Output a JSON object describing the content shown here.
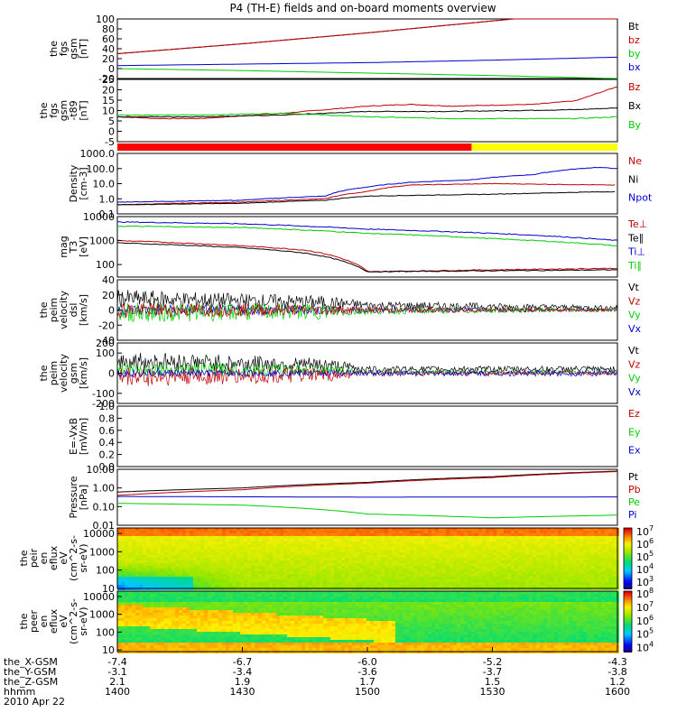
{
  "title": "P4 (TH-E) fields and on-board moments overview",
  "colors": {
    "black": "#000000",
    "red": "#c00000",
    "green": "#00cc00",
    "blue": "#0000cc",
    "bar_red": "#ff0000",
    "bar_yellow": "#ffff00"
  },
  "chart_data": [
    {
      "type": "line",
      "panel": "fgs",
      "ylabel_lines": [
        "the",
        "fgs",
        "gsm",
        "[nT]"
      ],
      "ylim": [
        -20,
        100
      ],
      "ytick_labels": [
        "100",
        "80",
        "60",
        "40",
        "20",
        "0",
        "-20"
      ],
      "legend": [
        {
          "label": "Bt",
          "color": "black"
        },
        {
          "label": "bz",
          "color": "red"
        },
        {
          "label": "by",
          "color": "green"
        },
        {
          "label": "bx",
          "color": "blue"
        }
      ],
      "series": [
        {
          "name": "Bt",
          "color": "black",
          "x": [
            1400,
            1430,
            1500,
            1530,
            1600
          ],
          "y": [
            30,
            50,
            72,
            96,
            120
          ]
        },
        {
          "name": "bz",
          "color": "red",
          "x": [
            1400,
            1430,
            1500,
            1530,
            1600
          ],
          "y": [
            30,
            50,
            72,
            96,
            120
          ]
        },
        {
          "name": "bx",
          "color": "blue",
          "x": [
            1400,
            1430,
            1500,
            1530,
            1600
          ],
          "y": [
            6,
            9,
            12,
            17,
            23
          ]
        },
        {
          "name": "by",
          "color": "green",
          "x": [
            1400,
            1430,
            1500,
            1530,
            1600
          ],
          "y": [
            0,
            -4,
            -9,
            -14,
            -20
          ]
        }
      ]
    },
    {
      "type": "line",
      "panel": "fgs_dsl",
      "ylabel_lines": [
        "the",
        "fgs",
        "gsm",
        "-t89",
        "[nT]"
      ],
      "ylim": [
        -10,
        25
      ],
      "ytick_labels": [
        "25",
        "20",
        "15",
        "10",
        "5",
        "0",
        "-5"
      ],
      "legend": [
        {
          "label": "Bz",
          "color": "red"
        },
        {
          "label": "Bx",
          "color": "black"
        },
        {
          "label": "By",
          "color": "green"
        }
      ],
      "series": [
        {
          "name": "Bz",
          "color": "red",
          "x": [
            1400,
            1410,
            1420,
            1440,
            1500,
            1510,
            1520,
            1540,
            1550,
            1600
          ],
          "y": [
            4,
            3,
            3,
            6,
            10,
            11,
            10,
            11,
            13,
            21
          ]
        },
        {
          "name": "Bx",
          "color": "black",
          "x": [
            1400,
            1420,
            1440,
            1500,
            1520,
            1550,
            1600
          ],
          "y": [
            4,
            4,
            5,
            7,
            7,
            8,
            9
          ]
        },
        {
          "name": "By",
          "color": "green",
          "x": [
            1400,
            1420,
            1440,
            1500,
            1520,
            1550,
            1600
          ],
          "y": [
            5,
            5,
            6,
            4,
            3,
            3,
            4
          ]
        }
      ]
    },
    {
      "type": "bar",
      "panel": "mode_bar",
      "segments": [
        {
          "from": 1400,
          "to": 1525,
          "color": "bar_red"
        },
        {
          "from": 1525,
          "to": 1600,
          "color": "bar_yellow"
        }
      ]
    },
    {
      "type": "line",
      "panel": "density",
      "ylabel_lines": [
        "Density",
        "[cm-3]"
      ],
      "ylog": true,
      "ylim": [
        0.1,
        1000
      ],
      "ytick_labels": [
        "1000.0",
        "100.0",
        "10.0",
        "1.0",
        "0.1"
      ],
      "legend": [
        {
          "label": "Ne",
          "color": "red"
        },
        {
          "label": "Ni",
          "color": "black"
        },
        {
          "label": "Npot",
          "color": "blue"
        }
      ],
      "series": [
        {
          "name": "Npot",
          "color": "blue",
          "x": [
            1400,
            1430,
            1450,
            1500,
            1510,
            1525,
            1540,
            1555,
            1600
          ],
          "y": [
            0.6,
            0.8,
            1.5,
            6,
            12,
            18,
            40,
            120,
            100
          ]
        },
        {
          "name": "Ne",
          "color": "red",
          "x": [
            1400,
            1430,
            1450,
            1500,
            1510,
            1530,
            1560,
            1600
          ],
          "y": [
            0.4,
            0.6,
            1,
            3,
            8,
            10,
            8,
            10
          ]
        },
        {
          "name": "Ni",
          "color": "black",
          "x": [
            1400,
            1430,
            1450,
            1500,
            1530,
            1560,
            1600
          ],
          "y": [
            0.4,
            0.5,
            0.8,
            1.5,
            2,
            3,
            5
          ]
        }
      ]
    },
    {
      "type": "line",
      "panel": "temperature",
      "ylabel_lines": [
        "mag",
        "T3",
        "[eV]"
      ],
      "ylog": true,
      "ylim": [
        30,
        10000
      ],
      "ytick_labels": [
        "10000",
        "1000",
        "100"
      ],
      "legend": [
        {
          "label": "Te⊥",
          "color": "red"
        },
        {
          "label": "Te∥",
          "color": "black"
        },
        {
          "label": "Ti⊥",
          "color": "blue"
        },
        {
          "label": "Ti∥",
          "color": "green"
        }
      ],
      "series": [
        {
          "name": "Ti⊥",
          "color": "blue",
          "x": [
            1400,
            1430,
            1500,
            1530,
            1600
          ],
          "y": [
            6000,
            5000,
            3000,
            2000,
            1000
          ]
        },
        {
          "name": "Ti∥",
          "color": "green",
          "x": [
            1400,
            1430,
            1500,
            1530,
            1600
          ],
          "y": [
            4000,
            3500,
            2000,
            1200,
            600
          ]
        },
        {
          "name": "Te⊥",
          "color": "red",
          "x": [
            1400,
            1430,
            1445,
            1455,
            1500,
            1530,
            1600
          ],
          "y": [
            1000,
            600,
            400,
            150,
            50,
            60,
            70
          ]
        },
        {
          "name": "Te∥",
          "color": "black",
          "x": [
            1400,
            1430,
            1445,
            1455,
            1500,
            1530,
            1600
          ],
          "y": [
            800,
            500,
            300,
            120,
            50,
            55,
            60
          ]
        }
      ]
    },
    {
      "type": "line",
      "panel": "peim_velocity_dsl",
      "ylabel_lines": [
        "the",
        "peim",
        "velocity",
        "dsl",
        "[km/s]"
      ],
      "ylim": [
        -40,
        40
      ],
      "ytick_labels": [
        "40",
        "20",
        "0",
        "-20",
        "-40"
      ],
      "legend": [
        {
          "label": "Vt",
          "color": "black"
        },
        {
          "label": "Vz",
          "color": "red"
        },
        {
          "label": "Vy",
          "color": "green"
        },
        {
          "label": "Vx",
          "color": "blue"
        }
      ],
      "noisy": true,
      "series": [
        {
          "name": "Vt",
          "color": "black",
          "x": [
            1400,
            1450,
            1500,
            1600
          ],
          "y": [
            15,
            10,
            6,
            3
          ],
          "amp": [
            12,
            9,
            6,
            3
          ]
        },
        {
          "name": "Vx",
          "color": "blue",
          "x": [
            1400,
            1450,
            1500,
            1600
          ],
          "y": [
            0,
            0,
            0,
            0
          ],
          "amp": [
            8,
            6,
            4,
            2
          ]
        },
        {
          "name": "Vy",
          "color": "green",
          "x": [
            1400,
            1450,
            1500,
            1600
          ],
          "y": [
            -3,
            -2,
            -1,
            0
          ],
          "amp": [
            14,
            10,
            5,
            2
          ]
        },
        {
          "name": "Vz",
          "color": "red",
          "x": [
            1400,
            1450,
            1500,
            1600
          ],
          "y": [
            0,
            0,
            0,
            0
          ],
          "amp": [
            10,
            7,
            4,
            2
          ]
        }
      ]
    },
    {
      "type": "line",
      "panel": "peim_velocity_gsm",
      "ylabel_lines": [
        "the",
        "peim",
        "velocity",
        "gsm",
        "[km/s]"
      ],
      "ylim": [
        -150,
        150
      ],
      "ytick_labels": [
        "200",
        "100",
        "0",
        "-100",
        "-200"
      ],
      "ytick_values": [
        200,
        100,
        0,
        -100,
        -200
      ],
      "legend": [
        {
          "label": "Vt",
          "color": "black"
        },
        {
          "label": "Vz",
          "color": "red"
        },
        {
          "label": "Vy",
          "color": "green"
        },
        {
          "label": "Vx",
          "color": "blue"
        }
      ],
      "noisy": true,
      "series": [
        {
          "name": "Vt",
          "color": "black",
          "x": [
            1400,
            1450,
            1500,
            1600
          ],
          "y": [
            60,
            40,
            20,
            20
          ],
          "amp": [
            50,
            35,
            15,
            15
          ]
        },
        {
          "name": "Vy",
          "color": "green",
          "x": [
            1400,
            1450,
            1500,
            1600
          ],
          "y": [
            20,
            15,
            5,
            5
          ],
          "amp": [
            40,
            25,
            10,
            10
          ]
        },
        {
          "name": "Vz",
          "color": "red",
          "x": [
            1400,
            1450,
            1500,
            1600
          ],
          "y": [
            -20,
            -10,
            0,
            0
          ],
          "amp": [
            50,
            35,
            10,
            10
          ]
        },
        {
          "name": "Vx",
          "color": "blue",
          "x": [
            1400,
            1450,
            1500,
            1600
          ],
          "y": [
            0,
            0,
            0,
            0
          ],
          "amp": [
            20,
            15,
            15,
            15
          ]
        }
      ]
    },
    {
      "type": "line",
      "panel": "efield",
      "ylabel_lines": [
        "E=-VxB",
        "[mV/m]"
      ],
      "ylim": [
        0,
        1
      ],
      "ytick_labels": [
        "1.0",
        "0.8",
        "0.6",
        "0.4",
        "0.2",
        "0.0"
      ],
      "legend": [
        {
          "label": "Ez",
          "color": "red"
        },
        {
          "label": "Ey",
          "color": "green"
        },
        {
          "label": "Ex",
          "color": "blue"
        }
      ],
      "series": []
    },
    {
      "type": "line",
      "panel": "pressure",
      "ylabel_lines": [
        "Pressure",
        "[nPa]"
      ],
      "ylog": true,
      "ylim": [
        0.01,
        10
      ],
      "ytick_labels": [
        "10.00",
        "1.00",
        "0.10",
        "0.01"
      ],
      "legend": [
        {
          "label": "Pt",
          "color": "black"
        },
        {
          "label": "Pb",
          "color": "red"
        },
        {
          "label": "Pe",
          "color": "green"
        },
        {
          "label": "Pi",
          "color": "blue"
        }
      ],
      "series": [
        {
          "name": "Pt",
          "color": "black",
          "x": [
            1400,
            1430,
            1500,
            1530,
            1600
          ],
          "y": [
            0.6,
            1.0,
            2.0,
            4.0,
            8.0
          ]
        },
        {
          "name": "Pb",
          "color": "red",
          "x": [
            1400,
            1430,
            1500,
            1530,
            1600
          ],
          "y": [
            0.4,
            0.8,
            1.8,
            3.6,
            7.6
          ]
        },
        {
          "name": "Pi",
          "color": "blue",
          "x": [
            1400,
            1500,
            1600
          ],
          "y": [
            0.35,
            0.32,
            0.33
          ]
        },
        {
          "name": "Pe",
          "color": "green",
          "x": [
            1400,
            1430,
            1445,
            1500,
            1530,
            1600
          ],
          "y": [
            0.15,
            0.12,
            0.08,
            0.04,
            0.025,
            0.035
          ]
        }
      ]
    },
    {
      "type": "heatmap",
      "panel": "peir_spectrogram",
      "ylabel_lines": [
        "the",
        "peir",
        "en",
        "eflux",
        "eV",
        "(cm^2-s-",
        "sr-eV)"
      ],
      "ylog": true,
      "ylim": [
        10,
        20000
      ],
      "ytick_labels": [
        "10000",
        "1000",
        "100",
        "10"
      ],
      "colorbar_labels": [
        "10^7",
        "10^6",
        "10^5",
        "10^4",
        "10^3"
      ],
      "colorbar_range_log10": [
        2.5,
        7.3
      ]
    },
    {
      "type": "heatmap",
      "panel": "peer_spectrogram",
      "ylabel_lines": [
        "the",
        "peer",
        "en",
        "eflux",
        "eV",
        "(cm^2-s-",
        "sr-eV)"
      ],
      "ylog": true,
      "ylim": [
        8,
        20000
      ],
      "ytick_labels": [
        "10000",
        "1000",
        "100",
        "10"
      ],
      "colorbar_labels": [
        "10^8",
        "10^7",
        "10^6",
        "10^5",
        "10^4"
      ],
      "colorbar_range_log10": [
        3.7,
        8.2
      ]
    }
  ],
  "x_axis": {
    "range": [
      1400,
      1600
    ],
    "tick_values": [
      1400,
      1430,
      1500,
      1530,
      1600
    ],
    "rows": [
      {
        "label": "the_X-GSM",
        "values": [
          "-7.4",
          "-6.7",
          "-6.0",
          "-5.2",
          "-4.3"
        ]
      },
      {
        "label": "the_Y-GSM",
        "values": [
          "-3.1",
          "-3.4",
          "-3.6",
          "-3.7",
          "-3.8"
        ]
      },
      {
        "label": "the_Z-GSM",
        "values": [
          "2.1",
          "1.9",
          "1.7",
          "1.5",
          "1.2"
        ]
      },
      {
        "label": "hhmm",
        "values": [
          "1400",
          "1430",
          "1500",
          "1530",
          "1600"
        ]
      }
    ],
    "date": "2010 Apr 22"
  }
}
